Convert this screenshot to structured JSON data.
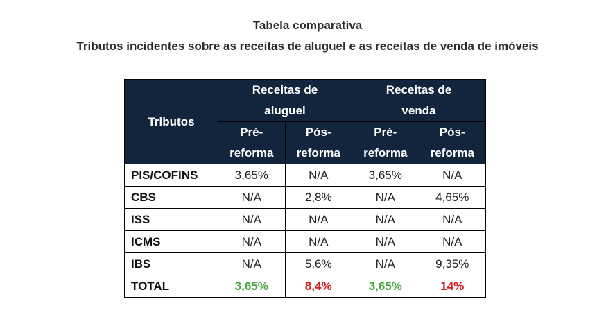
{
  "header": {
    "title": "Tabela comparativa",
    "subtitle": "Tributos incidentes sobre as receitas de aluguel e as receitas de venda de imóveis"
  },
  "table": {
    "corner_label": "Tributos",
    "groups": [
      {
        "line1": "Receitas de",
        "line2": "aluguel"
      },
      {
        "line1": "Receitas de",
        "line2": "venda"
      }
    ],
    "subheaders": [
      {
        "line1": "Pré-",
        "line2": "reforma"
      },
      {
        "line1": "Pós-",
        "line2": "reforma"
      },
      {
        "line1": "Pré-",
        "line2": "reforma"
      },
      {
        "line1": "Pós-",
        "line2": "reforma"
      }
    ],
    "rows": [
      {
        "label": "PIS/COFINS",
        "values": [
          "3,65%",
          "N/A",
          "3,65%",
          "N/A"
        ]
      },
      {
        "label": "CBS",
        "values": [
          "N/A",
          "2,8%",
          "N/A",
          "4,65%"
        ]
      },
      {
        "label": "ISS",
        "values": [
          "N/A",
          "N/A",
          "N/A",
          "N/A"
        ]
      },
      {
        "label": "ICMS",
        "values": [
          "N/A",
          "N/A",
          "N/A",
          "N/A"
        ]
      },
      {
        "label": "IBS",
        "values": [
          "N/A",
          "5,6%",
          "N/A",
          "9,35%"
        ]
      }
    ],
    "total": {
      "label": "TOTAL",
      "values": [
        "3,65%",
        "8,4%",
        "3,65%",
        "14%"
      ]
    },
    "colors": {
      "header_bg": "#13243d",
      "total_pre": "#4aa63f",
      "total_pos": "#d21b1b"
    }
  }
}
